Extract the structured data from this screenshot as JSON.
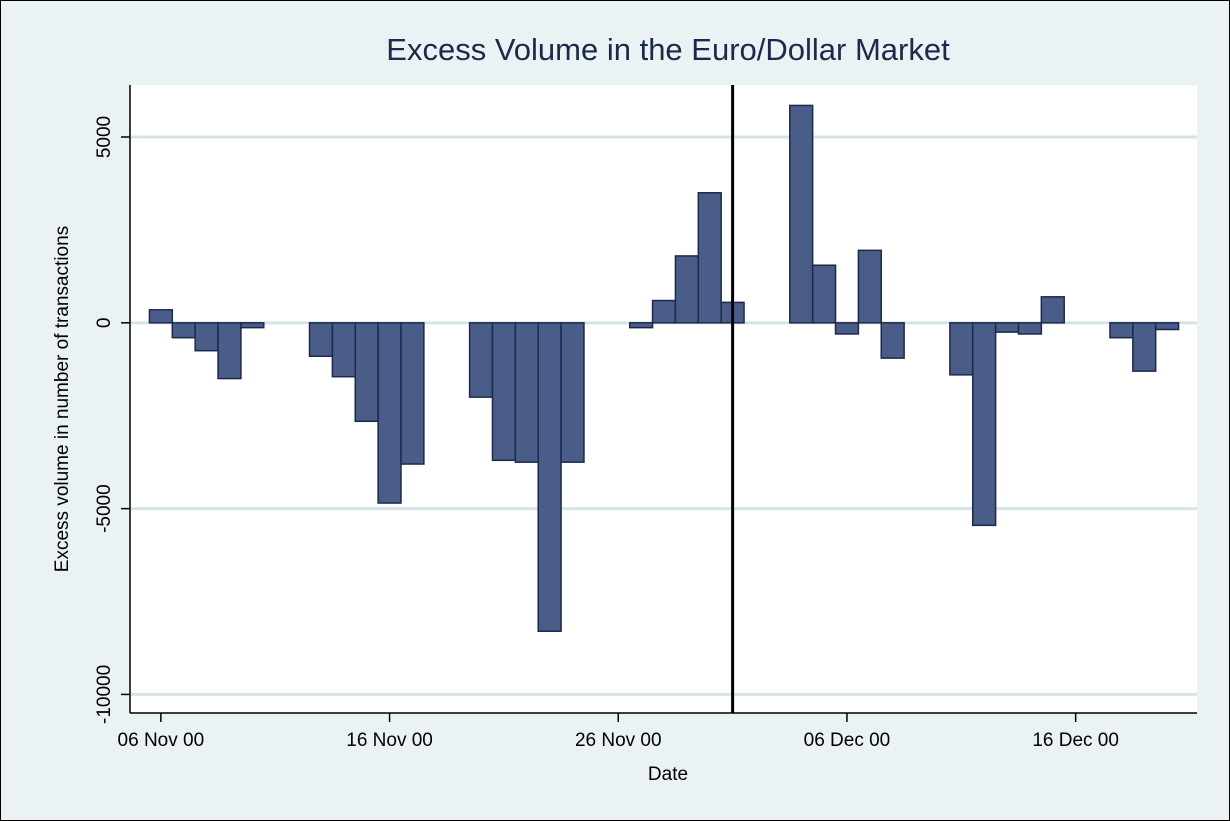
{
  "chart_data": {
    "type": "bar",
    "title": "Excess Volume in the Euro/Dollar Market",
    "x_label": "Date",
    "y_label": "Excess volume in number of transactions",
    "x": [
      "06 Nov 00",
      "07 Nov 00",
      "08 Nov 00",
      "09 Nov 00",
      "10 Nov 00",
      "13 Nov 00",
      "14 Nov 00",
      "15 Nov 00",
      "16 Nov 00",
      "17 Nov 00",
      "20 Nov 00",
      "21 Nov 00",
      "22 Nov 00",
      "23 Nov 00",
      "24 Nov 00",
      "27 Nov 00",
      "28 Nov 00",
      "29 Nov 00",
      "30 Nov 00",
      "01 Dec 00",
      "04 Dec 00",
      "05 Dec 00",
      "06 Dec 00",
      "07 Dec 00",
      "08 Dec 00",
      "11 Dec 00",
      "12 Dec 00",
      "13 Dec 00",
      "14 Dec 00",
      "15 Dec 00",
      "18 Dec 00",
      "19 Dec 00",
      "20 Dec 00"
    ],
    "values": [
      350,
      -400,
      -750,
      -1500,
      -130,
      -900,
      -1450,
      -2650,
      -4850,
      -3800,
      -2000,
      -3700,
      -3750,
      -8300,
      -3750,
      -130,
      600,
      1800,
      3500,
      550,
      5850,
      1550,
      -300,
      1950,
      -950,
      -1400,
      -5450,
      -250,
      -300,
      700,
      -400,
      -1300,
      -180
    ],
    "color": "#4a5d88",
    "xlim": [
      "05 Nov 00",
      "21 Dec 00"
    ],
    "xticks": [
      "06 Nov 00",
      "16 Nov 00",
      "26 Nov 00",
      "06 Dec 00",
      "16 Dec 00"
    ],
    "ylim": [
      -10500,
      6400
    ],
    "yticks": [
      -10000,
      -5000,
      0,
      5000
    ],
    "grid": true,
    "vline": "01 Dec 00"
  }
}
